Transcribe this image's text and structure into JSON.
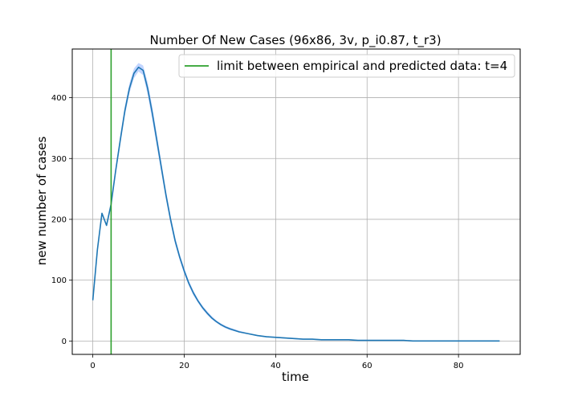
{
  "chart_data": {
    "type": "line",
    "title": "Number Of New Cases (96x86, 3v, p_i0.87, t_r3)",
    "xlabel": "time",
    "ylabel": "new number of cases",
    "xlim": [
      -4.5,
      93.5
    ],
    "ylim": [
      -22,
      480
    ],
    "xticks": [
      0,
      20,
      40,
      60,
      80
    ],
    "yticks": [
      0,
      100,
      200,
      300,
      400
    ],
    "grid": true,
    "legend": {
      "placement": "top-right",
      "entries": [
        {
          "label": "limit between empirical and predicted data: t=4",
          "color": "#2ca02c"
        }
      ]
    },
    "vline": {
      "x": 4,
      "color": "#2ca02c"
    },
    "series": [
      {
        "color": "#1f77b4",
        "band_color": "#aec7ff",
        "x": [
          0,
          1,
          2,
          3,
          4,
          5,
          6,
          7,
          8,
          9,
          10,
          11,
          12,
          13,
          14,
          15,
          16,
          17,
          18,
          19,
          20,
          21,
          22,
          23,
          24,
          25,
          26,
          27,
          28,
          29,
          30,
          32,
          34,
          36,
          38,
          40,
          42,
          44,
          46,
          48,
          50,
          52,
          54,
          56,
          58,
          60,
          62,
          64,
          66,
          68,
          70,
          75,
          80,
          85,
          89
        ],
        "y": [
          67,
          150,
          210,
          190,
          225,
          280,
          330,
          378,
          415,
          440,
          450,
          445,
          415,
          375,
          330,
          285,
          240,
          200,
          165,
          138,
          115,
          95,
          79,
          66,
          55,
          46,
          38,
          32,
          27,
          23,
          20,
          15,
          12,
          9,
          7,
          6,
          5,
          4,
          3,
          3,
          2,
          2,
          2,
          2,
          1,
          1,
          1,
          1,
          1,
          1,
          0,
          0,
          0,
          0,
          0
        ],
        "y_lower": [
          67,
          150,
          210,
          190,
          222,
          274,
          322,
          370,
          407,
          432,
          443,
          437,
          405,
          364,
          320,
          276,
          232,
          193,
          159,
          133,
          110,
          91,
          75,
          63,
          52,
          43,
          36,
          30,
          25,
          21,
          18,
          14,
          11,
          8,
          6,
          5,
          4,
          3,
          2,
          2,
          1,
          1,
          1,
          1,
          0,
          0,
          0,
          0,
          0,
          0,
          0,
          0,
          0,
          0,
          0
        ],
        "y_upper": [
          67,
          150,
          210,
          190,
          228,
          286,
          338,
          386,
          423,
          448,
          457,
          453,
          425,
          386,
          340,
          294,
          248,
          207,
          171,
          143,
          120,
          99,
          83,
          69,
          58,
          49,
          41,
          34,
          29,
          25,
          22,
          17,
          13,
          10,
          8,
          7,
          6,
          5,
          4,
          4,
          3,
          3,
          3,
          3,
          2,
          2,
          2,
          2,
          2,
          2,
          1,
          1,
          1,
          1,
          1
        ]
      }
    ]
  }
}
